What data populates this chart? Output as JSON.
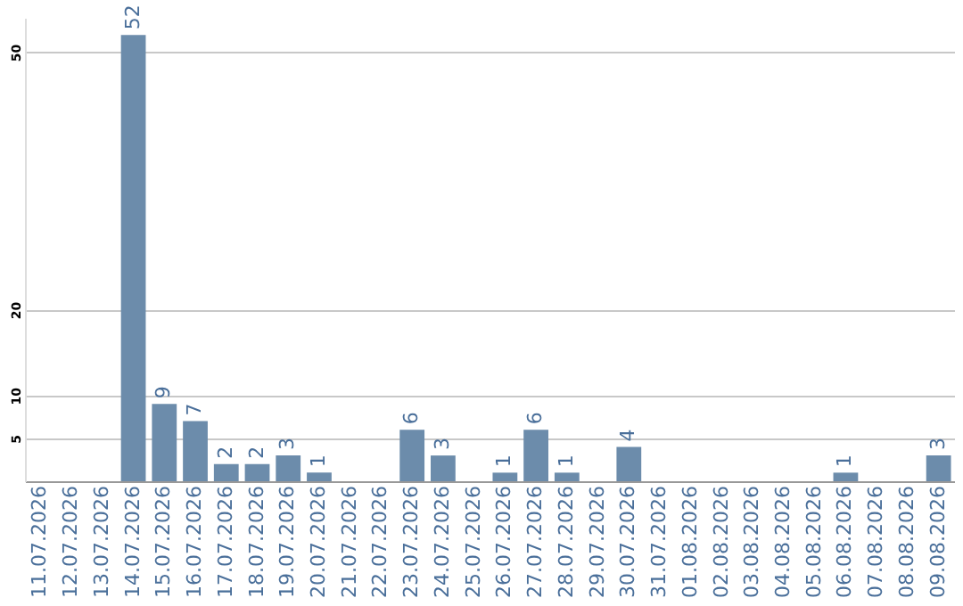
{
  "chart_data": {
    "type": "bar",
    "categories": [
      "11.07.2026",
      "12.07.2026",
      "13.07.2026",
      "14.07.2026",
      "15.07.2026",
      "16.07.2026",
      "17.07.2026",
      "18.07.2026",
      "19.07.2026",
      "20.07.2026",
      "21.07.2026",
      "22.07.2026",
      "23.07.2026",
      "24.07.2026",
      "25.07.2026",
      "26.07.2026",
      "27.07.2026",
      "28.07.2026",
      "29.07.2026",
      "30.07.2026",
      "31.07.2026",
      "01.08.2026",
      "02.08.2026",
      "03.08.2026",
      "04.08.2026",
      "05.08.2026",
      "06.08.2026",
      "07.08.2026",
      "08.08.2026",
      "09.08.2026"
    ],
    "values": [
      null,
      null,
      null,
      52,
      9,
      7,
      2,
      2,
      3,
      1,
      null,
      null,
      6,
      3,
      null,
      1,
      6,
      1,
      null,
      4,
      null,
      null,
      null,
      null,
      null,
      null,
      1,
      null,
      null,
      3
    ],
    "color": "#6c8cab",
    "ylim": [
      0,
      54
    ],
    "yticks": [
      5,
      10,
      20,
      50
    ],
    "grid": "y",
    "data_labels": true
  }
}
